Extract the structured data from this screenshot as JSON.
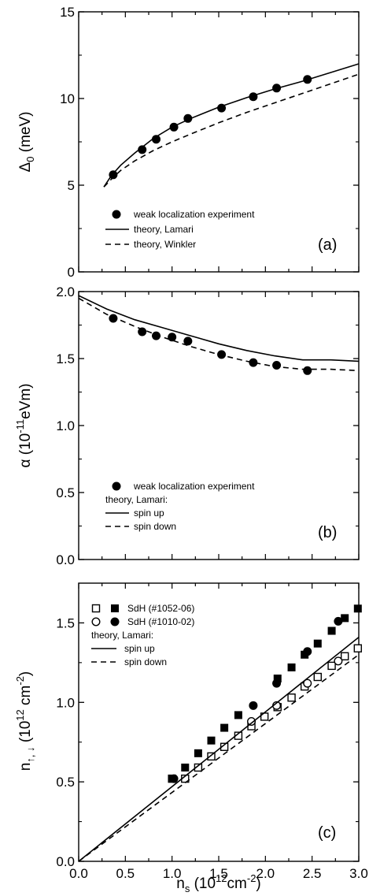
{
  "chart_data": [
    {
      "type": "scatter",
      "panel_label": "(a)",
      "ylabel_sym": "Δ",
      "ylabel_sub": "0",
      "ylabel_rest": " (meV)",
      "xlim": [
        0.0,
        3.0
      ],
      "ylim": [
        0,
        15
      ],
      "yticks": [
        "0",
        "5",
        "10",
        "15"
      ],
      "grid": false,
      "legend": "lower-center",
      "series": [
        {
          "name": "weak localization experiment",
          "style": "filled-circle",
          "x": [
            0.37,
            0.68,
            0.83,
            1.02,
            1.17,
            1.53,
            1.87,
            2.12,
            2.45
          ],
          "y": [
            5.6,
            7.05,
            7.65,
            8.35,
            8.85,
            9.45,
            10.1,
            10.6,
            11.1
          ]
        },
        {
          "name": "theory, Lamari",
          "style": "solid",
          "x": [
            0.27,
            0.35,
            0.45,
            0.6,
            0.8,
            1.0,
            1.2,
            1.5,
            1.8,
            2.1,
            2.4,
            2.7,
            3.0
          ],
          "y": [
            4.9,
            5.55,
            6.15,
            6.85,
            7.7,
            8.35,
            8.85,
            9.5,
            10.05,
            10.55,
            11.0,
            11.5,
            12.0
          ]
        },
        {
          "name": "theory, Winkler",
          "style": "dashed",
          "x": [
            0.27,
            0.35,
            0.45,
            0.6,
            0.8,
            1.0,
            1.2,
            1.5,
            1.8,
            2.1,
            2.4,
            2.7,
            3.0
          ],
          "y": [
            4.9,
            5.35,
            5.85,
            6.4,
            7.0,
            7.5,
            7.95,
            8.6,
            9.2,
            9.75,
            10.3,
            10.85,
            11.4
          ]
        }
      ]
    },
    {
      "type": "scatter",
      "panel_label": "(b)",
      "ylabel_sym": "α",
      "ylabel_mid": "  (10",
      "ylabel_sup": "-11",
      "ylabel_rest": "eVm)",
      "xlim": [
        0.0,
        3.0
      ],
      "ylim": [
        0.0,
        2.0
      ],
      "yticks": [
        "0.0",
        "0.5",
        "1.0",
        "1.5",
        "2.0"
      ],
      "grid": false,
      "legend": "lower-center",
      "legend_group_title": "theory, Lamari:",
      "series": [
        {
          "name": "weak localization experiment",
          "style": "filled-circle",
          "x": [
            0.37,
            0.68,
            0.83,
            1.0,
            1.17,
            1.53,
            1.87,
            2.12,
            2.45
          ],
          "y": [
            1.8,
            1.7,
            1.67,
            1.66,
            1.63,
            1.53,
            1.47,
            1.45,
            1.41
          ]
        },
        {
          "name": "spin up",
          "style": "solid",
          "x": [
            0.0,
            0.3,
            0.6,
            0.9,
            1.2,
            1.5,
            1.8,
            2.1,
            2.4,
            2.7,
            3.0
          ],
          "y": [
            1.97,
            1.87,
            1.79,
            1.73,
            1.67,
            1.61,
            1.56,
            1.52,
            1.49,
            1.49,
            1.48
          ]
        },
        {
          "name": "spin down",
          "style": "dashed",
          "x": [
            0.0,
            0.3,
            0.6,
            0.9,
            1.2,
            1.5,
            1.8,
            2.1,
            2.4,
            2.7,
            3.0
          ],
          "y": [
            1.95,
            1.83,
            1.74,
            1.66,
            1.59,
            1.53,
            1.48,
            1.44,
            1.42,
            1.42,
            1.41
          ]
        }
      ]
    },
    {
      "type": "scatter",
      "panel_label": "(c)",
      "ylabel_base": "n",
      "ylabel_sub": "↑, ↓",
      "ylabel_mid": "  (10",
      "ylabel_sup": "12",
      "ylabel_rest": " cm",
      "ylabel_sup2": "-2",
      "ylabel_end": ")",
      "xlim": [
        0.0,
        3.0
      ],
      "ylim": [
        0.0,
        1.75
      ],
      "yticks": [
        "0.0",
        "0.5",
        "1.0",
        "1.5"
      ],
      "xticks": [
        "0.0",
        "0.5",
        "1.0",
        "1.5",
        "2.0",
        "2.5",
        "3.0"
      ],
      "xlabel_base": "n",
      "xlabel_sub": "s",
      "xlabel_mid": "  (10",
      "xlabel_sup": "12",
      "xlabel_rest": "cm",
      "xlabel_sup2": "-2",
      "xlabel_end": ")",
      "grid": false,
      "legend": "top-left",
      "legend_group_title": "theory, Lamari:",
      "series": [
        {
          "name": "SdH (#1052-06)",
          "style": "open-square",
          "x": [
            1.0,
            1.14,
            1.28,
            1.42,
            1.56,
            1.71,
            1.85,
            1.99,
            2.13,
            2.28,
            2.42,
            2.56,
            2.71,
            2.85,
            2.99
          ],
          "y": [
            0.52,
            0.52,
            0.59,
            0.66,
            0.72,
            0.79,
            0.85,
            0.91,
            0.97,
            1.03,
            1.1,
            1.16,
            1.23,
            1.29,
            1.34
          ]
        },
        {
          "name": "SdH (#1052-06)",
          "style": "filled-square",
          "x": [
            1.0,
            1.14,
            1.28,
            1.42,
            1.56,
            1.71,
            2.13,
            2.28,
            2.42,
            2.56,
            2.71,
            2.85,
            2.99
          ],
          "y": [
            0.52,
            0.59,
            0.68,
            0.76,
            0.84,
            0.92,
            1.15,
            1.22,
            1.3,
            1.37,
            1.45,
            1.53,
            1.59
          ]
        },
        {
          "name": "SdH (#1010-02)",
          "style": "open-circle",
          "x": [
            1.85,
            2.12,
            2.45,
            2.78
          ],
          "y": [
            0.88,
            0.98,
            1.12,
            1.26
          ]
        },
        {
          "name": "SdH (#1010-02)",
          "style": "filled-circle",
          "x": [
            1.02,
            1.87,
            2.12,
            2.45,
            2.78
          ],
          "y": [
            0.52,
            0.98,
            1.12,
            1.32,
            1.51
          ]
        },
        {
          "name": "spin up",
          "style": "solid",
          "x": [
            0.0,
            3.0
          ],
          "y": [
            0.0,
            1.41
          ]
        },
        {
          "name": "spin down",
          "style": "dashed",
          "x": [
            0.0,
            3.0
          ],
          "y": [
            0.0,
            1.3
          ]
        }
      ]
    }
  ]
}
